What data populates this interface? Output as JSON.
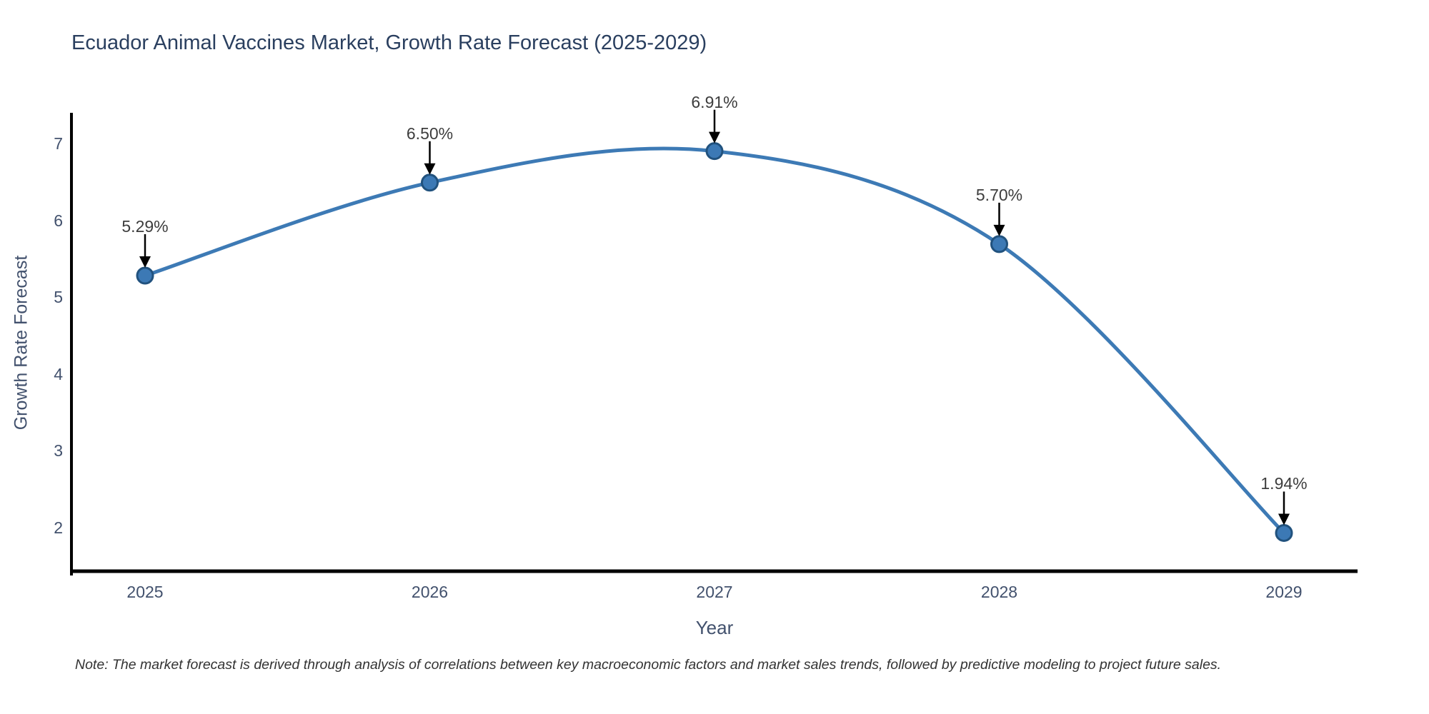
{
  "page": {
    "title": "Ecuador Animal Vaccines Market, Growth Rate Forecast (2025-2029)",
    "note": "Note: The market forecast is derived through analysis of correlations between key macroeconomic factors and market sales trends, followed by predictive modeling to project future sales."
  },
  "chart_data": {
    "type": "line",
    "title": "Ecuador Animal Vaccines Market, Growth Rate Forecast (2025-2029)",
    "xlabel": "Year",
    "ylabel": "Growth Rate Forecast",
    "x": [
      2025,
      2026,
      2027,
      2028,
      2029
    ],
    "series": [
      {
        "name": "Growth Rate Forecast",
        "values": [
          5.29,
          6.5,
          6.91,
          5.7,
          1.94
        ]
      }
    ],
    "point_labels": [
      "5.29%",
      "6.50%",
      "6.91%",
      "5.70%",
      "1.94%"
    ],
    "yticks": [
      2,
      3,
      4,
      5,
      6,
      7
    ],
    "ylim": [
      1.44,
      7.4
    ],
    "xlim": [
      2024.74,
      2029.26
    ],
    "line_shape": "spline",
    "grid": false,
    "legend": false,
    "annotations_have_arrows": true,
    "colors": {
      "line": "#3d7ab5",
      "marker_fill": "#3c79b5",
      "marker_edge": "#21527e",
      "arrow": "#000000",
      "axis_line": "#000000",
      "title_text": "#2a3f5f",
      "axis_text": "#42516d",
      "annotation_text": "#3d3d3d",
      "note_text": "#333333",
      "background": "#ffffff"
    }
  }
}
